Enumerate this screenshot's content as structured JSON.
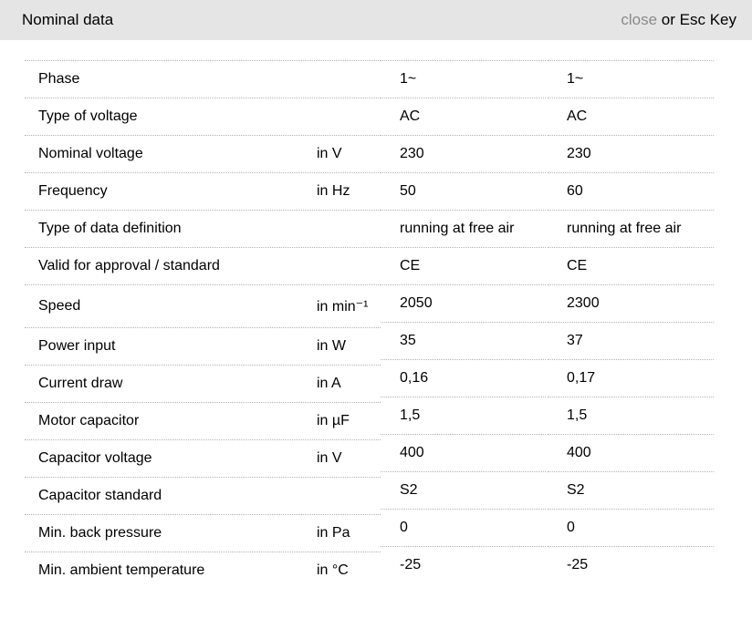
{
  "colors": {
    "header_bg": "#e5e5e5",
    "divider": "#b3b3b3",
    "text": "#000000",
    "muted": "#8a8a8a",
    "page_bg": "#ffffff"
  },
  "header": {
    "title": "Nominal data",
    "close_label": "close",
    "close_suffix": " or Esc Key"
  },
  "table": {
    "rows": [
      {
        "label": "Phase",
        "unit": "",
        "values": [
          "1~",
          "1~"
        ]
      },
      {
        "label": "Type of voltage",
        "unit": "",
        "values": [
          "AC",
          "AC"
        ]
      },
      {
        "label": "Nominal voltage",
        "unit": "in V",
        "values": [
          "230",
          "230"
        ]
      },
      {
        "label": "Frequency",
        "unit": "in Hz",
        "values": [
          "50",
          "60"
        ]
      },
      {
        "label": "Type of data definition",
        "unit": "",
        "values": [
          "running at free air",
          "running at free air"
        ]
      },
      {
        "label": "Valid for approval / standard",
        "unit": "",
        "values": [
          "CE",
          "CE"
        ]
      },
      {
        "label": "Speed",
        "unit": "in min⁻¹",
        "values": [
          "2050",
          "2300"
        ]
      },
      {
        "label": "Power input",
        "unit": "in W",
        "values": [
          "35",
          "37"
        ]
      },
      {
        "label": "Current draw",
        "unit": "in A",
        "values": [
          "0,16",
          "0,17"
        ]
      },
      {
        "label": "Motor capacitor",
        "unit": "in µF",
        "values": [
          "1,5",
          "1,5"
        ]
      },
      {
        "label": "Capacitor voltage",
        "unit": "in V",
        "values": [
          "400",
          "400"
        ]
      },
      {
        "label": "Capacitor standard",
        "unit": "",
        "values": [
          "S2",
          "S2"
        ]
      },
      {
        "label": "Min. back pressure",
        "unit": "in Pa",
        "values": [
          "0",
          "0"
        ]
      },
      {
        "label": "Min. ambient temperature",
        "unit": "in °C",
        "values": [
          "-25",
          "-25"
        ]
      }
    ]
  }
}
